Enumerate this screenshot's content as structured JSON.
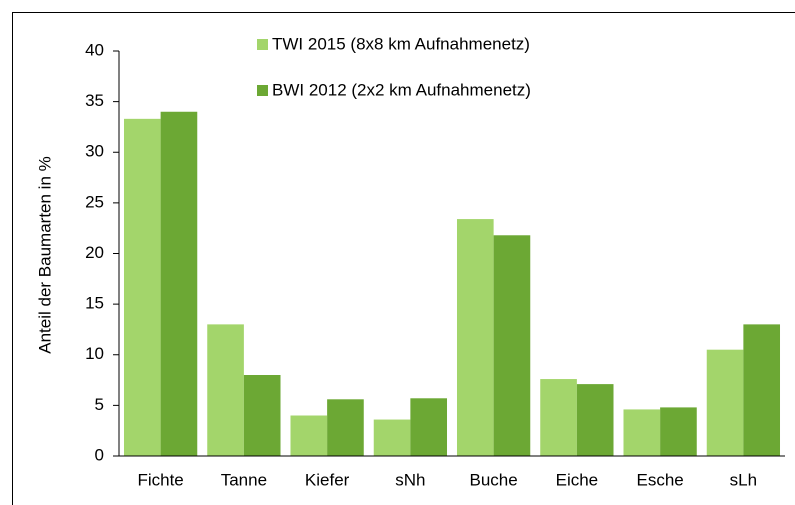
{
  "chart_data": {
    "type": "bar",
    "y_label": "Anteil der Baumarten in %",
    "categories": [
      "Fichte",
      "Tanne",
      "Kiefer",
      "sNh",
      "Buche",
      "Eiche",
      "Esche",
      "sLh"
    ],
    "series": [
      {
        "name": "TWI 2015 (8x8 km Aufnahmenetz)",
        "color": "#a3d56b",
        "values": [
          33.3,
          13.0,
          4.0,
          3.6,
          23.4,
          7.6,
          4.6,
          10.5
        ]
      },
      {
        "name": "BWI 2012 (2x2 km Aufnahmenetz)",
        "color": "#6ca834",
        "values": [
          34.0,
          8.0,
          5.6,
          5.7,
          21.8,
          7.1,
          4.8,
          13.0
        ]
      }
    ],
    "ylim": [
      0,
      40
    ],
    "yticks": [
      0,
      5,
      10,
      15,
      20,
      25,
      30,
      35,
      40
    ],
    "grid": false
  }
}
